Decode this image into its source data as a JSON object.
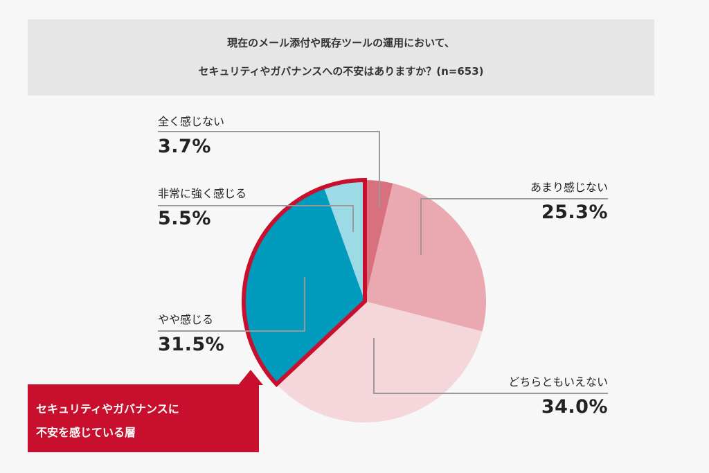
{
  "title": {
    "line1": "現在のメール添付や既存ツールの運用において、",
    "line2": "セキュリティやガバナンスへの不安はありますか？(n=653)"
  },
  "chart_data": {
    "type": "pie",
    "start": "12 o'clock, clockwise",
    "slices": [
      {
        "label": "全く感じない",
        "value": 3.7,
        "value_text": "3.7%",
        "color": "#d9707e"
      },
      {
        "label": "あまり感じない",
        "value": 25.3,
        "value_text": "25.3%",
        "color": "#eaa8b1"
      },
      {
        "label": "どちらともいえない",
        "value": 34.0,
        "value_text": "34.0%",
        "color": "#f4d6db"
      },
      {
        "label": "やや感じる",
        "value": 31.5,
        "value_text": "31.5%",
        "color": "#009bbd"
      },
      {
        "label": "非常に強く感じる",
        "value": 5.5,
        "value_text": "5.5%",
        "color": "#9cdae6"
      }
    ],
    "highlight": {
      "slices": [
        "やや感じる",
        "非常に強く感じる"
      ],
      "border_color": "#c8102e"
    }
  },
  "callout": {
    "line1": "セキュリティやガバナンスに",
    "line2": "不安を感じている層",
    "color": "#c8102e"
  }
}
